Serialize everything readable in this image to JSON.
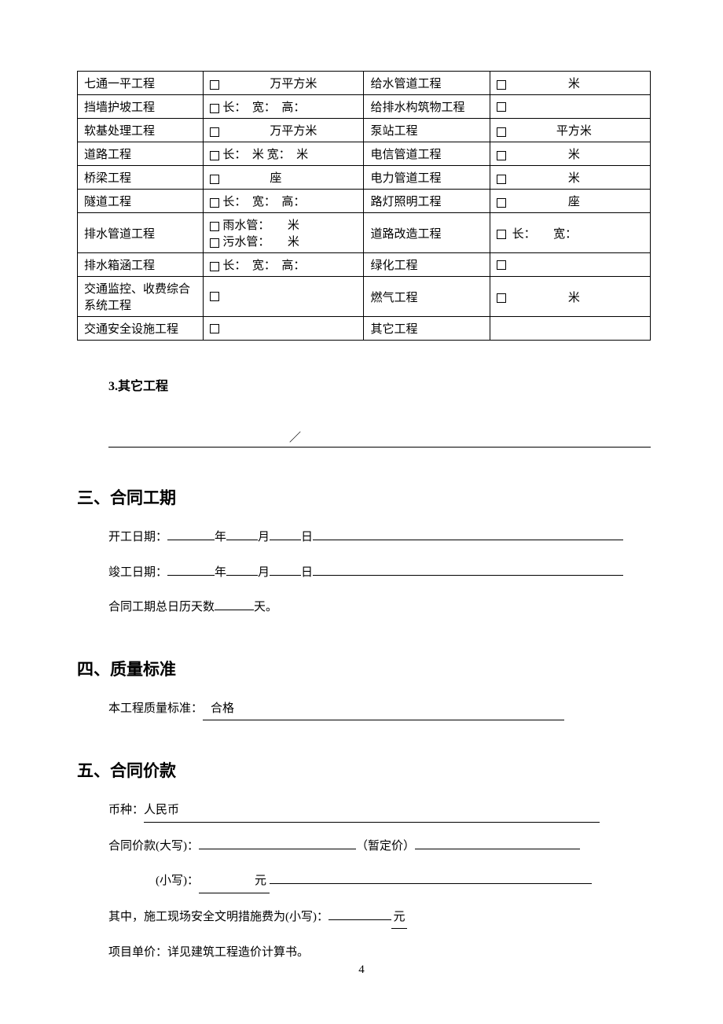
{
  "table": {
    "rows": [
      {
        "l": "七通一平工程",
        "lval": "<cb>　　　　万平方米",
        "r": "给水管道工程",
        "rval": "<cb>　　　　　米"
      },
      {
        "l": "挡墙护坡工程",
        "lval": "<cb>长：　宽：　高：",
        "r": "给排水构筑物工程",
        "rval": "<cb>"
      },
      {
        "l": "软基处理工程",
        "lval": "<cb>　　　　万平方米",
        "r": "泵站工程",
        "rval": "<cb>　　　　平方米"
      },
      {
        "l": "道路工程",
        "lval": "<cb>长：　米 宽：　米",
        "r": "电信管道工程",
        "rval": "<cb>　　　　　米"
      },
      {
        "l": "桥梁工程",
        "lval": "<cb>　　　　座",
        "r": "电力管道工程",
        "rval": "<cb>　　　　　米"
      },
      {
        "l": "隧道工程",
        "lval": "<cb>长：　宽：　高：",
        "r": "路灯照明工程",
        "rval": "<cb>　　　　　座"
      },
      {
        "l": "排水管道工程",
        "lval": "<cb>雨水管：　　米<br><cb>污水管：　　米",
        "r": "道路改造工程",
        "rval": "<cb> 长：　　宽："
      },
      {
        "l": "排水箱涵工程",
        "lval": "<cb>长：　宽：　高：",
        "r": "绿化工程",
        "rval": "<cb>"
      },
      {
        "l": "交通监控、收费综合系统工程",
        "lval": "<cb>",
        "r": "燃气工程",
        "rval": "<cb>　　　　　米"
      },
      {
        "l": "交通安全设施工程",
        "lval": "<cb>",
        "r": "其它工程",
        "rval": ""
      }
    ]
  },
  "sub3": "3.其它工程",
  "sec3": {
    "title": "三、合同工期",
    "start_label": "开工日期：",
    "end_label": "竣工日期：",
    "year": "年",
    "month": "月",
    "day": "日",
    "total_prefix": "合同工期总日历天数",
    "total_suffix": "天。"
  },
  "sec4": {
    "title": "四、质量标准",
    "prefix": "本工程质量标准：",
    "value": "合格"
  },
  "sec5": {
    "title": "五、合同价款",
    "currency_label": "币种：",
    "currency_value": "人民币",
    "amount_label": "合同价款(大写)：",
    "tentative": "（暂定价）",
    "lower_label": "(小写)：",
    "yuan": "元",
    "safety_label": "其中，施工现场安全文明措施费为(小写)：",
    "unitprice": "项目单价：详见建筑工程造价计算书。"
  },
  "pagenum": "4"
}
